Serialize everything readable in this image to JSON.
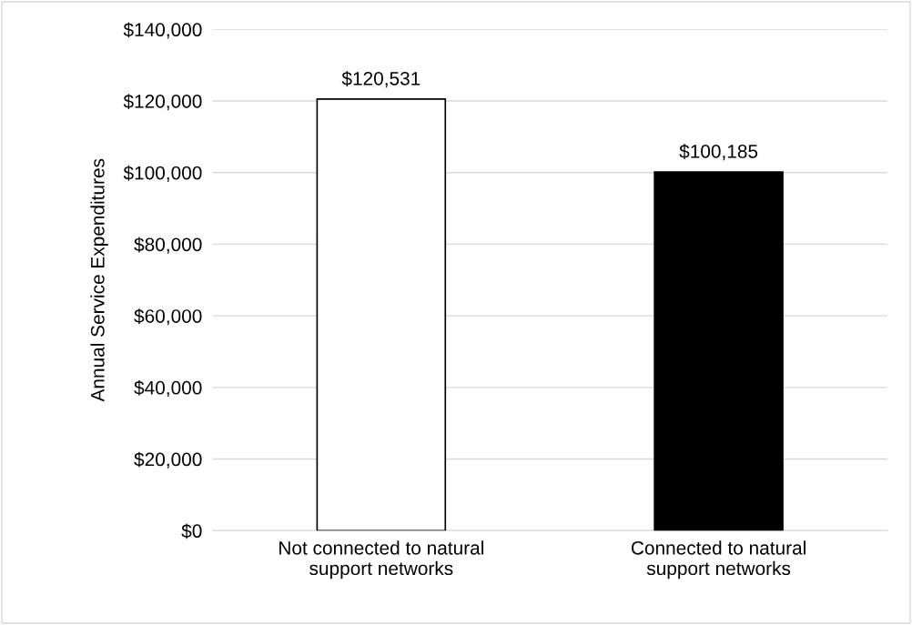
{
  "chart_data": {
    "type": "bar",
    "ylabel": "Annual Service Expenditures",
    "categories": [
      "Not connected to natural\nsupport networks",
      "Connected to natural\nsupport networks"
    ],
    "values": [
      120531,
      100185
    ],
    "colors": [
      "#ffffff",
      "#000000"
    ],
    "value_labels": [
      "$120,531",
      "$100,185"
    ],
    "ylim": [
      0,
      140000
    ],
    "yticks": [
      {
        "value": 0,
        "label": "$0"
      },
      {
        "value": 20000,
        "label": "$20,000"
      },
      {
        "value": 40000,
        "label": "$40,000"
      },
      {
        "value": 60000,
        "label": "$60,000"
      },
      {
        "value": 80000,
        "label": "$80,000"
      },
      {
        "value": 100000,
        "label": "$100,000"
      },
      {
        "value": 120000,
        "label": "$120,000"
      },
      {
        "value": 140000,
        "label": "$140,000"
      }
    ],
    "grid": "y",
    "legend": false
  }
}
